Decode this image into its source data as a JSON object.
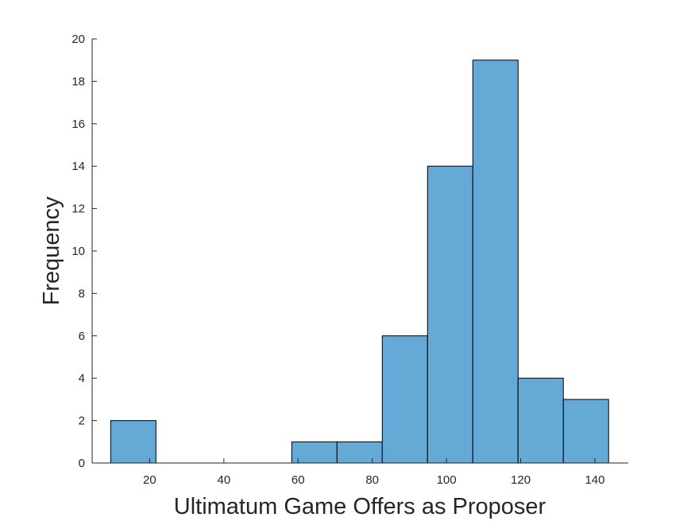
{
  "chart_data": {
    "type": "bar",
    "subtype": "histogram",
    "title": "",
    "xlabel": "Ultimatum Game Offers as Proposer",
    "ylabel": "Frequency",
    "xlim": [
      4.5,
      149
    ],
    "ylim": [
      0,
      20
    ],
    "xticks": [
      20,
      40,
      60,
      80,
      100,
      120,
      140
    ],
    "yticks": [
      0,
      2,
      4,
      6,
      8,
      10,
      12,
      14,
      16,
      18,
      20
    ],
    "bin_edges": [
      9.5,
      21.7,
      33.9,
      46.1,
      58.3,
      70.5,
      82.7,
      94.9,
      107.1,
      119.3,
      131.5,
      143.7
    ],
    "counts": [
      2,
      0,
      0,
      0,
      1,
      1,
      6,
      14,
      19,
      4,
      3
    ],
    "bar_color": "#65A9D7",
    "edge_color": "#000000",
    "grid": false
  }
}
